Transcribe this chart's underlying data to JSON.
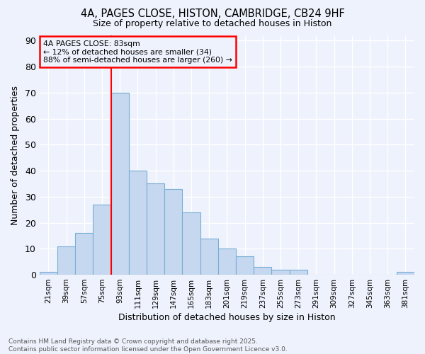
{
  "title_line1": "4A, PAGES CLOSE, HISTON, CAMBRIDGE, CB24 9HF",
  "title_line2": "Size of property relative to detached houses in Histon",
  "xlabel": "Distribution of detached houses by size in Histon",
  "ylabel": "Number of detached properties",
  "categories": [
    "21sqm",
    "39sqm",
    "57sqm",
    "75sqm",
    "93sqm",
    "111sqm",
    "129sqm",
    "147sqm",
    "165sqm",
    "183sqm",
    "201sqm",
    "219sqm",
    "237sqm",
    "255sqm",
    "273sqm",
    "291sqm",
    "309sqm",
    "327sqm",
    "345sqm",
    "363sqm",
    "381sqm"
  ],
  "values": [
    1,
    11,
    16,
    27,
    70,
    40,
    35,
    33,
    24,
    14,
    10,
    7,
    3,
    2,
    2,
    0,
    0,
    0,
    0,
    0,
    1
  ],
  "bar_color": "#c5d8f0",
  "bar_edge_color": "#7aadd4",
  "red_line_x": 3.5,
  "annotation_title": "4A PAGES CLOSE: 83sqm",
  "annotation_line2": "← 12% of detached houses are smaller (34)",
  "annotation_line3": "88% of semi-detached houses are larger (260) →",
  "ylim": [
    0,
    92
  ],
  "yticks": [
    0,
    10,
    20,
    30,
    40,
    50,
    60,
    70,
    80,
    90
  ],
  "background_color": "#eef2fc",
  "grid_color": "#ffffff",
  "footer_line1": "Contains HM Land Registry data © Crown copyright and database right 2025.",
  "footer_line2": "Contains public sector information licensed under the Open Government Licence v3.0."
}
